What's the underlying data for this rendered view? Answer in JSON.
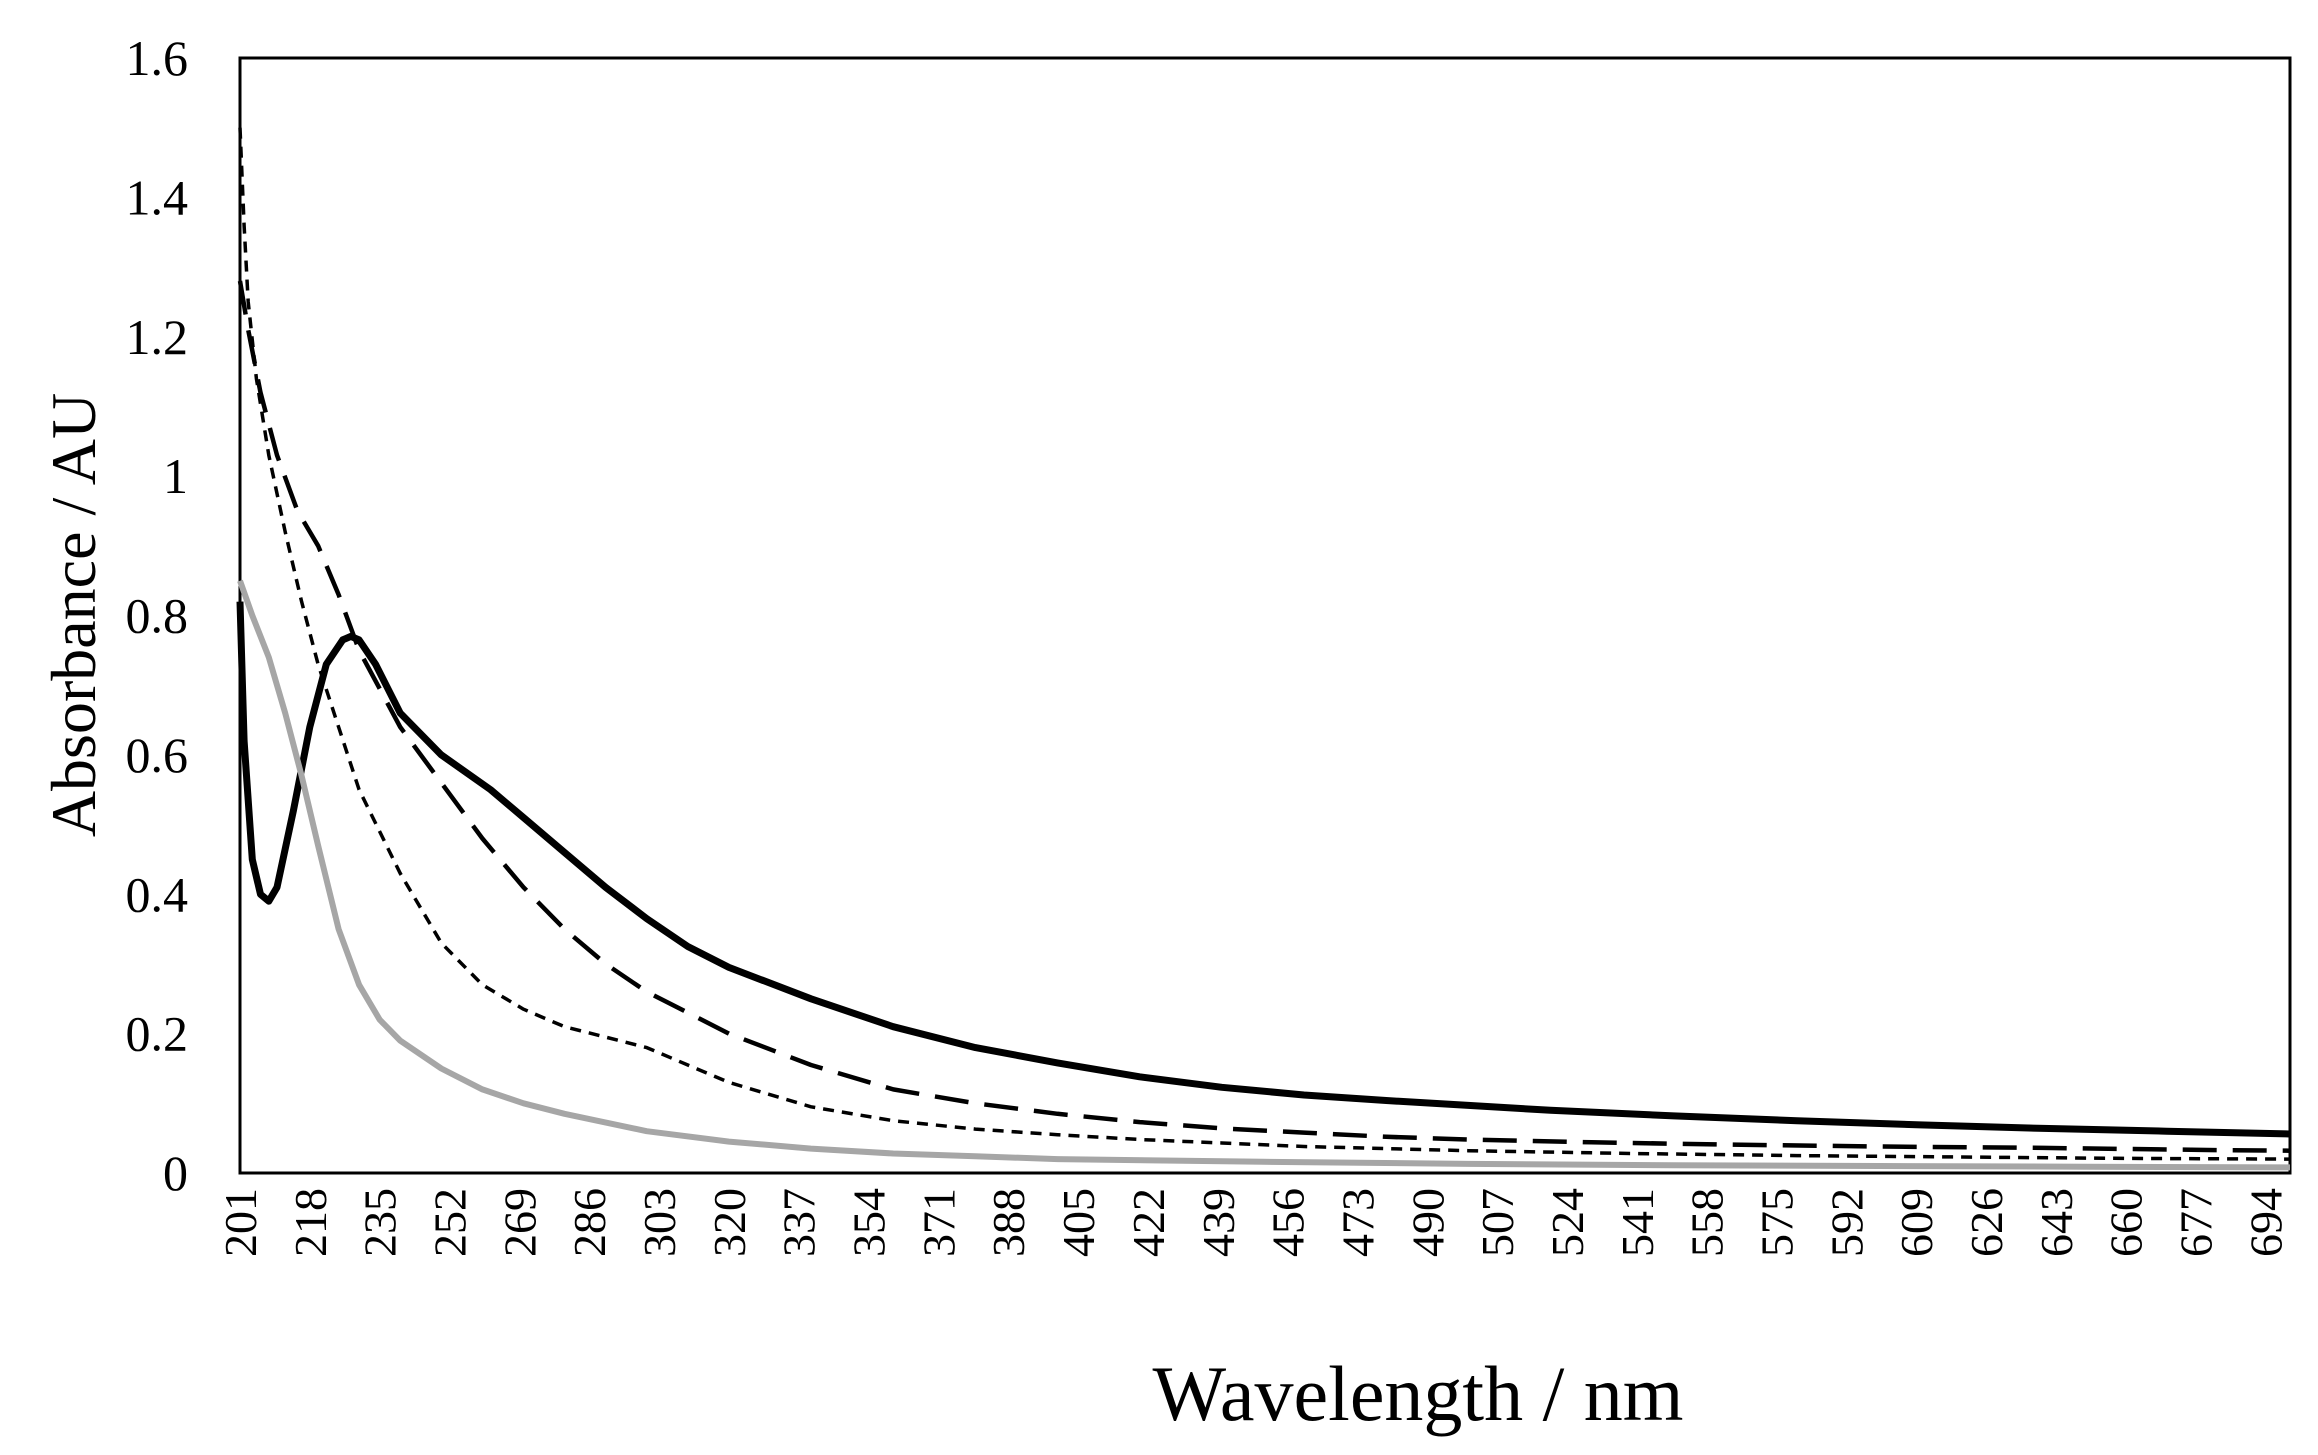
{
  "chart_data": {
    "type": "line",
    "title": "",
    "xlabel": "Wavelength / nm",
    "ylabel": "Absorbance / AU",
    "xlim": [
      201,
      700
    ],
    "ylim": [
      0,
      1.6
    ],
    "grid": false,
    "legend": "none",
    "x_tick_labels": [
      "201",
      "218",
      "235",
      "252",
      "269",
      "286",
      "303",
      "320",
      "337",
      "354",
      "371",
      "388",
      "405",
      "422",
      "439",
      "456",
      "473",
      "490",
      "507",
      "524",
      "541",
      "558",
      "575",
      "592",
      "609",
      "626",
      "643",
      "660",
      "677",
      "694"
    ],
    "y_tick_labels": [
      "0",
      "0.2",
      "0.4",
      "0.6",
      "0.8",
      "1",
      "1.2",
      "1.4",
      "1.6"
    ],
    "series": [
      {
        "name": "solid black",
        "color": "#000000",
        "dash": "solid",
        "x": [
          201,
          202,
          204,
          206,
          208,
          210,
          214,
          218,
          222,
          226,
          228,
          230,
          234,
          240,
          250,
          262,
          270,
          280,
          290,
          300,
          310,
          320,
          340,
          360,
          380,
          400,
          420,
          440,
          460,
          480,
          500,
          520,
          550,
          580,
          610,
          640,
          670,
          700
        ],
        "values": [
          0.82,
          0.62,
          0.45,
          0.4,
          0.39,
          0.41,
          0.52,
          0.64,
          0.73,
          0.765,
          0.77,
          0.765,
          0.73,
          0.66,
          0.6,
          0.55,
          0.51,
          0.46,
          0.41,
          0.365,
          0.325,
          0.295,
          0.25,
          0.21,
          0.18,
          0.158,
          0.138,
          0.123,
          0.112,
          0.104,
          0.097,
          0.09,
          0.082,
          0.075,
          0.069,
          0.064,
          0.06,
          0.056
        ]
      },
      {
        "name": "long dash",
        "color": "#000000",
        "dash": "long",
        "x": [
          201,
          203,
          206,
          210,
          215,
          220,
          225,
          230,
          240,
          250,
          260,
          270,
          280,
          290,
          300,
          320,
          340,
          360,
          380,
          400,
          420,
          440,
          460,
          480,
          500,
          530,
          560,
          600,
          640,
          680,
          700
        ],
        "values": [
          1.28,
          1.21,
          1.12,
          1.03,
          0.95,
          0.9,
          0.83,
          0.75,
          0.64,
          0.56,
          0.48,
          0.41,
          0.35,
          0.3,
          0.26,
          0.2,
          0.155,
          0.12,
          0.1,
          0.085,
          0.073,
          0.064,
          0.058,
          0.052,
          0.048,
          0.044,
          0.041,
          0.038,
          0.036,
          0.033,
          0.032
        ]
      },
      {
        "name": "short dash",
        "color": "#000000",
        "dash": "short",
        "x": [
          201,
          202,
          203,
          205,
          208,
          212,
          216,
          220,
          225,
          230,
          240,
          250,
          260,
          270,
          280,
          290,
          300,
          310,
          320,
          340,
          360,
          380,
          400,
          420,
          440,
          460,
          480,
          500,
          540,
          580,
          620,
          660,
          700
        ],
        "values": [
          1.5,
          1.36,
          1.25,
          1.14,
          1.03,
          0.92,
          0.82,
          0.73,
          0.64,
          0.55,
          0.43,
          0.33,
          0.27,
          0.235,
          0.21,
          0.195,
          0.18,
          0.155,
          0.13,
          0.095,
          0.075,
          0.063,
          0.055,
          0.048,
          0.043,
          0.038,
          0.035,
          0.032,
          0.028,
          0.025,
          0.023,
          0.021,
          0.02
        ]
      },
      {
        "name": "gray",
        "color": "#a6a6a6",
        "dash": "solid",
        "x": [
          201,
          204,
          208,
          212,
          216,
          220,
          225,
          230,
          235,
          240,
          250,
          260,
          270,
          280,
          300,
          320,
          340,
          360,
          380,
          400,
          450,
          500,
          550,
          600,
          650,
          700
        ],
        "values": [
          0.85,
          0.8,
          0.74,
          0.66,
          0.57,
          0.47,
          0.35,
          0.27,
          0.22,
          0.19,
          0.15,
          0.12,
          0.1,
          0.085,
          0.06,
          0.045,
          0.035,
          0.028,
          0.024,
          0.02,
          0.016,
          0.013,
          0.011,
          0.01,
          0.009,
          0.008
        ]
      }
    ]
  }
}
